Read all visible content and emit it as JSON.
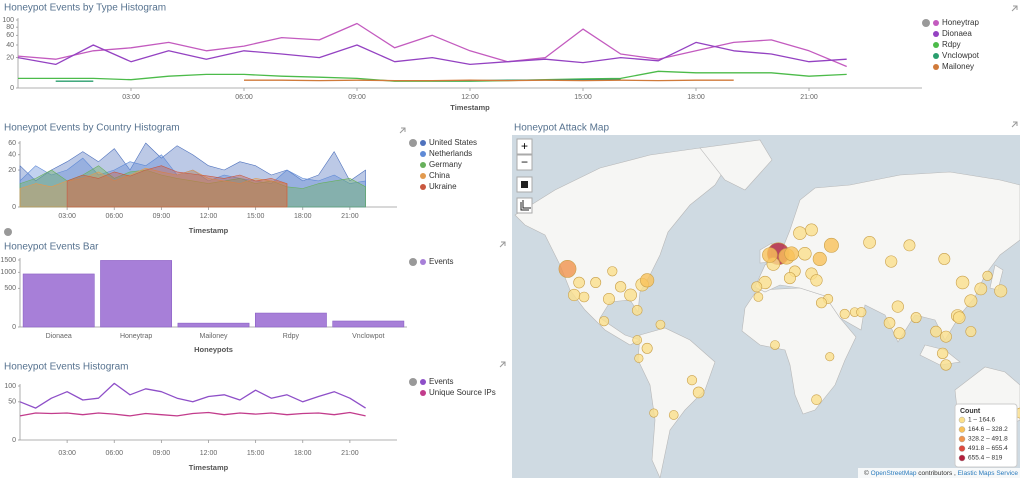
{
  "chart_data": [
    {
      "type": "line",
      "title": "Honeypot Events by Type Histogram",
      "x_label": "Timestamp",
      "scale": "sqrt",
      "x": [
        0,
        1,
        2,
        3,
        4,
        5,
        6,
        7,
        8,
        9,
        10,
        11,
        12,
        13,
        14,
        15,
        16,
        17,
        18,
        19,
        20,
        21,
        22
      ],
      "xlim": [
        0,
        24
      ],
      "xticks": [
        {
          "value": 3,
          "label": "03:00"
        },
        {
          "value": 6,
          "label": "06:00"
        },
        {
          "value": 9,
          "label": "09:00"
        },
        {
          "value": 12,
          "label": "12:00"
        },
        {
          "value": 15,
          "label": "15:00"
        },
        {
          "value": 18,
          "label": "18:00"
        },
        {
          "value": 21,
          "label": "21:00"
        }
      ],
      "ylim": [
        0,
        100
      ],
      "yticks": [
        0,
        20,
        40,
        60,
        80,
        100
      ],
      "legend": "right",
      "series": [
        {
          "name": "Honeytrap",
          "color": "#c35bbf",
          "values": [
            22,
            18,
            30,
            35,
            45,
            30,
            38,
            55,
            50,
            90,
            35,
            60,
            30,
            15,
            20,
            75,
            25,
            18,
            30,
            45,
            50,
            30,
            10
          ]
        },
        {
          "name": "Dionaea",
          "color": "#9442c2",
          "values": [
            20,
            12,
            40,
            15,
            30,
            18,
            30,
            25,
            20,
            40,
            15,
            20,
            12,
            15,
            18,
            14,
            20,
            16,
            45,
            30,
            25,
            15,
            18
          ]
        },
        {
          "name": "Rdpy",
          "color": "#4cbb4a",
          "values": [
            2,
            2,
            2,
            1.5,
            3,
            4,
            4,
            3,
            2.5,
            2,
            1,
            1,
            1,
            1.2,
            1.5,
            1.8,
            2,
            6,
            5,
            5,
            5,
            3,
            4
          ]
        },
        {
          "name": "Vnclowpot",
          "color": "#2a9e6e",
          "values": [
            null,
            1,
            1,
            null,
            null,
            null,
            null,
            null,
            null,
            null,
            null,
            1.2,
            1.2,
            1.3,
            1.4,
            1.5,
            1.6,
            null,
            null,
            null,
            null,
            null,
            null
          ]
        },
        {
          "name": "Mailoney",
          "color": "#d07a3a",
          "values": [
            null,
            null,
            null,
            null,
            null,
            null,
            1.3,
            1.3,
            1.2,
            1.3,
            1.2,
            1.2,
            1.3,
            1.2,
            1.3,
            1.2,
            1.3,
            1.2,
            1.3,
            1.3,
            null,
            null,
            null
          ]
        }
      ]
    },
    {
      "type": "area",
      "title": "Honeypot Events by Country Histogram",
      "x_label": "Timestamp",
      "scale": "sqrt",
      "x": [
        0,
        1,
        2,
        3,
        4,
        5,
        6,
        7,
        8,
        9,
        10,
        11,
        12,
        13,
        14,
        15,
        16,
        17,
        18,
        19,
        20,
        21,
        22
      ],
      "xlim": [
        0,
        24
      ],
      "xticks": [
        {
          "value": 3,
          "label": "03:00"
        },
        {
          "value": 6,
          "label": "06:00"
        },
        {
          "value": 9,
          "label": "09:00"
        },
        {
          "value": 12,
          "label": "12:00"
        },
        {
          "value": 15,
          "label": "15:00"
        },
        {
          "value": 18,
          "label": "18:00"
        },
        {
          "value": 21,
          "label": "21:00"
        }
      ],
      "ylim": [
        0,
        60
      ],
      "yticks": [
        0,
        20,
        40,
        60
      ],
      "legend": "right",
      "series": [
        {
          "name": "United States",
          "color": "#4f72bd",
          "values": [
            25,
            10,
            20,
            30,
            45,
            30,
            50,
            20,
            60,
            35,
            55,
            40,
            25,
            20,
            30,
            25,
            15,
            20,
            10,
            15,
            45,
            10,
            20
          ]
        },
        {
          "name": "Netherlands",
          "color": "#5f8ad6",
          "values": [
            10,
            25,
            15,
            20,
            35,
            15,
            20,
            30,
            25,
            40,
            15,
            20,
            10,
            15,
            12,
            10,
            8,
            20,
            12,
            10,
            15,
            8,
            10
          ]
        },
        {
          "name": "Germany",
          "color": "#67b05b",
          "values": [
            8,
            12,
            20,
            10,
            15,
            25,
            12,
            18,
            20,
            15,
            12,
            10,
            8,
            10,
            12,
            8,
            10,
            6,
            5,
            8,
            10,
            12,
            6
          ]
        },
        {
          "name": "China",
          "color": "#e29a4f",
          "values": [
            5,
            8,
            6,
            10,
            12,
            18,
            10,
            15,
            22,
            18,
            15,
            20,
            12,
            10,
            8,
            12,
            10,
            8,
            null,
            null,
            null,
            null,
            null
          ]
        },
        {
          "name": "Ukraine",
          "color": "#c9573f",
          "values": [
            null,
            null,
            null,
            10,
            15,
            12,
            18,
            14,
            20,
            25,
            18,
            16,
            14,
            12,
            15,
            10,
            12,
            8,
            null,
            null,
            null,
            null,
            null
          ]
        }
      ]
    },
    {
      "type": "bar",
      "title": "Honeypot Events Bar",
      "x_label": "Honeypots",
      "scale": "sqrt",
      "categories": [
        "Dionaea",
        "Honeytrap",
        "Mailoney",
        "Rdpy",
        "Vnclowpot"
      ],
      "ylim": [
        0,
        1500
      ],
      "yticks": [
        0,
        500,
        1000,
        1500
      ],
      "legend": "right",
      "series": [
        {
          "name": "Events",
          "color": "#a77fd8",
          "values": [
            940,
            1480,
            5,
            65,
            12
          ]
        }
      ]
    },
    {
      "type": "line",
      "title": "Honeypot Events Histogram",
      "x_label": "Timestamp",
      "scale": "sqrt",
      "x": [
        0,
        1,
        2,
        3,
        4,
        5,
        6,
        7,
        8,
        9,
        10,
        11,
        12,
        13,
        14,
        15,
        16,
        17,
        18,
        19,
        20,
        21,
        22
      ],
      "xlim": [
        0,
        24
      ],
      "xticks": [
        {
          "value": 3,
          "label": "03:00"
        },
        {
          "value": 6,
          "label": "06:00"
        },
        {
          "value": 9,
          "label": "09:00"
        },
        {
          "value": 12,
          "label": "12:00"
        },
        {
          "value": 15,
          "label": "15:00"
        },
        {
          "value": 18,
          "label": "18:00"
        },
        {
          "value": 21,
          "label": "21:00"
        }
      ],
      "ylim": [
        0,
        100
      ],
      "yticks": [
        0,
        50,
        100
      ],
      "legend": "right",
      "series": [
        {
          "name": "Events",
          "color": "#8e4fc8",
          "values": [
            50,
            35,
            60,
            80,
            55,
            60,
            110,
            70,
            90,
            80,
            60,
            50,
            65,
            70,
            55,
            85,
            60,
            70,
            50,
            65,
            80,
            60,
            35
          ]
        },
        {
          "name": "Unique Source IPs",
          "color": "#c23c8c",
          "values": [
            20,
            25,
            24,
            25,
            22,
            25,
            23,
            20,
            24,
            22,
            20,
            24,
            26,
            22,
            25,
            23,
            25,
            22,
            24,
            25,
            22,
            26,
            20
          ]
        }
      ]
    },
    {
      "type": "map",
      "title": "Honeypot Attack Map",
      "controls": [
        "+",
        "−"
      ],
      "legend_title": "Count",
      "color_breaks": [
        1,
        164.6,
        328.2,
        491.8,
        655.4,
        819
      ],
      "color_labels": [
        "1 – 164.6",
        "164.6 – 328.2",
        "328.2 – 491.8",
        "491.8 – 655.4",
        "655.4 – 819"
      ],
      "colors": [
        "#fbe08c",
        "#f9c25a",
        "#f1944d",
        "#dd4a3e",
        "#b3203c"
      ],
      "attribution": [
        "©",
        "OpenStreetMap",
        "contributors ,",
        "Elastic Maps Service"
      ],
      "lon": [
        -122,
        -118,
        -115,
        -105,
        -97,
        -90,
        -84,
        -77,
        -74,
        -80,
        -95,
        -112,
        -100,
        -80,
        -74,
        -66,
        -43,
        -47,
        -58,
        -70,
        -79,
        5,
        2,
        -3,
        -0.1,
        10,
        13,
        18,
        25,
        21,
        30,
        37,
        25,
        15,
        12,
        28,
        35,
        -8,
        31,
        -7,
        3,
        36,
        28,
        45,
        51,
        55,
        60,
        73,
        84,
        105,
        116,
        121,
        113,
        114,
        127,
        139,
        77,
        72,
        78,
        88,
        100,
        106,
        104,
        121,
        106,
        131,
        151,
        144,
        115,
        175
      ],
      "lat": [
        46,
        34,
        40,
        40,
        32,
        38,
        34,
        39,
        41,
        26,
        45,
        33,
        20,
        9,
        4,
        18,
        -22,
        -15,
        -34,
        -33,
        -2,
        52,
        48,
        40,
        51.5,
        51,
        52,
        59,
        60,
        52,
        50,
        55,
        44,
        45,
        42,
        41,
        32,
        38,
        30,
        33,
        6,
        -1,
        -26,
        24,
        25,
        25,
        56,
        49,
        55,
        50,
        40,
        31,
        23,
        22,
        37,
        36,
        28,
        19,
        13,
        22,
        14,
        11,
        1,
        14,
        -6,
        43,
        -33,
        -37,
        -32,
        -41
      ],
      "values": [
        400,
        100,
        80,
        60,
        90,
        70,
        120,
        150,
        180,
        50,
        40,
        50,
        40,
        30,
        60,
        30,
        80,
        40,
        30,
        20,
        20,
        819,
        150,
        140,
        250,
        300,
        200,
        150,
        120,
        150,
        180,
        220,
        100,
        80,
        90,
        100,
        40,
        60,
        60,
        30,
        30,
        20,
        50,
        40,
        30,
        40,
        120,
        100,
        90,
        90,
        150,
        130,
        140,
        110,
        120,
        130,
        100,
        80,
        90,
        60,
        80,
        90,
        70,
        60,
        70,
        40,
        60,
        40,
        30,
        20
      ]
    }
  ]
}
